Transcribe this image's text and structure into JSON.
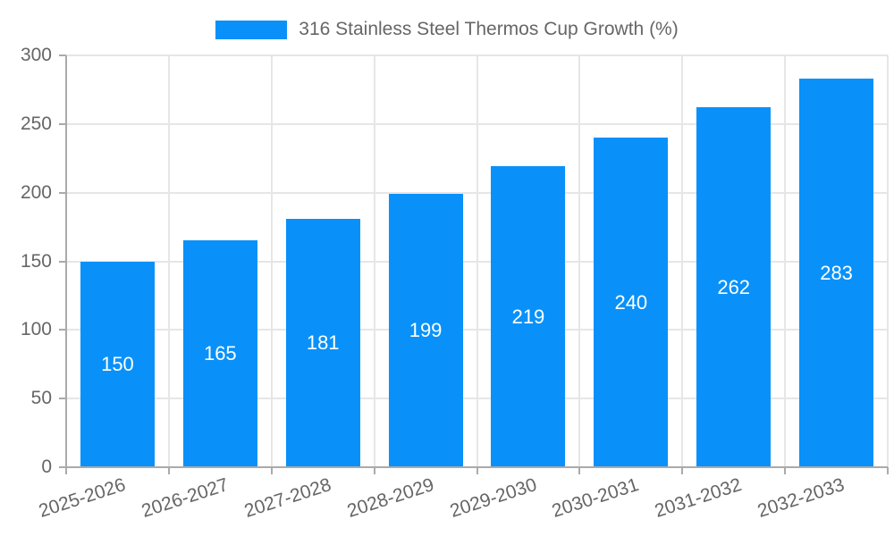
{
  "chart_data": {
    "type": "bar",
    "title": "",
    "categories": [
      "2025-2026",
      "2026-2027",
      "2027-2028",
      "2028-2029",
      "2029-2030",
      "2030-2031",
      "2031-2032",
      "2032-2033"
    ],
    "series": [
      {
        "name": "316 Stainless Steel Thermos Cup Growth (%)",
        "values": [
          150,
          165,
          181,
          199,
          219,
          240,
          262,
          283
        ]
      }
    ],
    "value_labels": [
      "150",
      "165",
      "181",
      "199",
      "219",
      "240",
      "262",
      "283"
    ],
    "xlabel": "",
    "ylabel": "",
    "ylim": [
      0,
      300
    ],
    "yticks": [
      0,
      50,
      100,
      150,
      200,
      250,
      300
    ],
    "grid": true,
    "legend_position": "top",
    "x_tick_rotation_deg": -18,
    "colors": {
      "bar": "#0991f9",
      "grid": "#e6e6e6",
      "axis": "#aaaaaa",
      "tick_text": "#666666",
      "value_label": "#ffffff",
      "background": "#ffffff"
    }
  }
}
